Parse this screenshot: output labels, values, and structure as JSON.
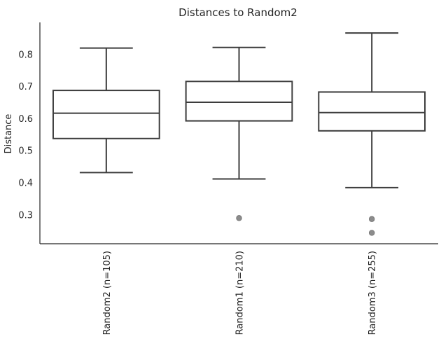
{
  "chart_data": {
    "type": "box",
    "title": "Distances to Random2",
    "xlabel": "",
    "ylabel": "Distance",
    "ylim": [
      0.21,
      0.9
    ],
    "yticks": [
      "0.3",
      "0.4",
      "0.5",
      "0.6",
      "0.7",
      "0.8"
    ],
    "grid": false,
    "categories": [
      "Random2 (n=105)",
      "Random1 (n=210)",
      "Random3 (n=255)"
    ],
    "boxes": [
      {
        "whislo": 0.432,
        "q1": 0.538,
        "med": 0.617,
        "q3": 0.688,
        "whishi": 0.82,
        "fliers": []
      },
      {
        "whislo": 0.412,
        "q1": 0.593,
        "med": 0.651,
        "q3": 0.716,
        "whishi": 0.822,
        "fliers": [
          0.29
        ]
      },
      {
        "whislo": 0.385,
        "q1": 0.562,
        "med": 0.619,
        "q3": 0.683,
        "whishi": 0.867,
        "fliers": [
          0.287,
          0.244
        ]
      }
    ],
    "colors": {
      "box_edge": "#3c3c3c",
      "flier": "#8c8c8c",
      "axis": "#262626"
    }
  }
}
